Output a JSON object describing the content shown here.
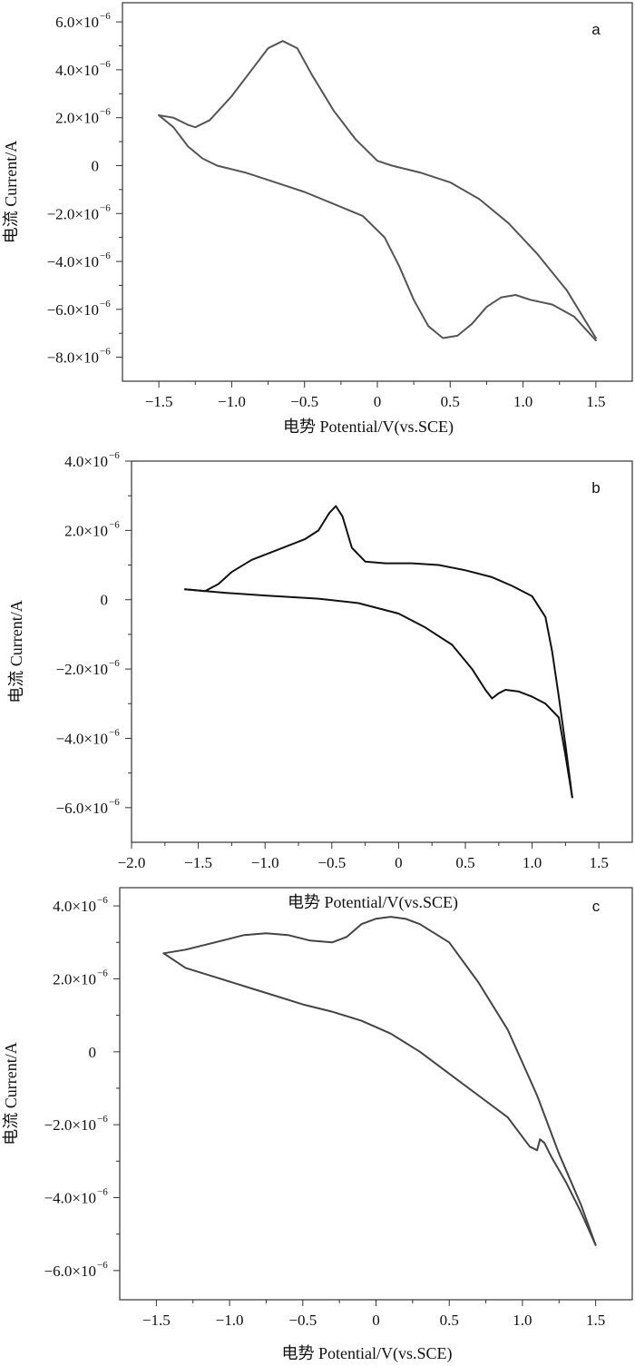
{
  "chart_data": [
    {
      "type": "line",
      "panel_label": "a",
      "xlabel": "电势 Potential/V(vs.SCE)",
      "ylabel": "电流 Current/A",
      "xlim": [
        -1.75,
        1.75
      ],
      "ylim": [
        -9e-06,
        6.8e-06
      ],
      "x_ticks": [
        -1.5,
        -1.0,
        -0.5,
        0,
        0.5,
        1.0,
        1.5
      ],
      "x_tick_labels": [
        "−1.5",
        "−1.0",
        "−0.5",
        "0",
        "0.5",
        "1.0",
        "1.5"
      ],
      "y_ticks": [
        6e-06,
        4e-06,
        2e-06,
        0,
        -2e-06,
        -4e-06,
        -6e-06,
        -8e-06
      ],
      "y_tick_labels": [
        "6.0×10",
        "4.0×10",
        "2.0×10",
        "0",
        "−2.0×10",
        "−4.0×10",
        "−6.0×10",
        "−8.0×10"
      ],
      "y_tick_exponent": "−6",
      "color": "#555555",
      "series": [
        {
          "x": [
            -1.5,
            -1.4,
            -1.3,
            -1.25,
            -1.15,
            -1.0,
            -0.85,
            -0.75,
            -0.65,
            -0.55,
            -0.45,
            -0.3,
            -0.15,
            0.0,
            0.1,
            0.3,
            0.5,
            0.7,
            0.9,
            1.1,
            1.3,
            1.5
          ],
          "y": [
            2.1e-06,
            2e-06,
            1.7e-06,
            1.6e-06,
            1.9e-06,
            2.9e-06,
            4.1e-06,
            4.9e-06,
            5.2e-06,
            4.9e-06,
            3.8e-06,
            2.3e-06,
            1.1e-06,
            2e-07,
            0.0,
            -3e-07,
            -7e-07,
            -1.4e-06,
            -2.4e-06,
            -3.7e-06,
            -5.2e-06,
            -7.2e-06
          ]
        },
        {
          "x": [
            1.5,
            1.35,
            1.2,
            1.05,
            0.95,
            0.85,
            0.75,
            0.65,
            0.55,
            0.45,
            0.35,
            0.25,
            0.15,
            0.05,
            -0.1,
            -0.3,
            -0.5,
            -0.7,
            -0.9,
            -1.1,
            -1.2,
            -1.3,
            -1.4,
            -1.5
          ],
          "y": [
            -7.3e-06,
            -6.3e-06,
            -5.8e-06,
            -5.6e-06,
            -5.4e-06,
            -5.5e-06,
            -5.9e-06,
            -6.6e-06,
            -7.1e-06,
            -7.2e-06,
            -6.7e-06,
            -5.6e-06,
            -4.2e-06,
            -3e-06,
            -2.1e-06,
            -1.6e-06,
            -1.1e-06,
            -7e-07,
            -3e-07,
            0.0,
            3e-07,
            8e-07,
            1.6e-06,
            2.1e-06
          ]
        }
      ]
    },
    {
      "type": "line",
      "panel_label": "b",
      "xlabel": "电势 Potential/V(vs.SCE)",
      "ylabel": "电流 Current/A",
      "xlim": [
        -2.0,
        1.75
      ],
      "ylim": [
        -7e-06,
        4e-06
      ],
      "x_ticks": [
        -2.0,
        -1.5,
        -1.0,
        -0.5,
        0,
        0.5,
        1.0,
        1.5
      ],
      "x_tick_labels": [
        "−2.0",
        "−1.5",
        "−1.0",
        "−0.5",
        "0",
        "0.5",
        "1.0",
        "1.5"
      ],
      "y_ticks": [
        4e-06,
        2e-06,
        0,
        -2e-06,
        -4e-06,
        -6e-06
      ],
      "y_tick_labels": [
        "4.0×10",
        "2.0×10",
        "0",
        "−2.0×10",
        "−4.0×10",
        "−6.0×10"
      ],
      "y_tick_exponent": "−6",
      "color": "#111111",
      "series": [
        {
          "x": [
            -1.6,
            -1.45,
            -1.35,
            -1.25,
            -1.1,
            -0.9,
            -0.7,
            -0.6,
            -0.52,
            -0.47,
            -0.42,
            -0.35,
            -0.25,
            -0.1,
            0.1,
            0.3,
            0.5,
            0.7,
            0.85,
            1.0,
            1.1,
            1.15,
            1.2,
            1.25,
            1.3
          ],
          "y": [
            3e-07,
            2.5e-07,
            4.5e-07,
            8e-07,
            1.15e-06,
            1.45e-06,
            1.75e-06,
            2e-06,
            2.5e-06,
            2.7e-06,
            2.4e-06,
            1.5e-06,
            1.1e-06,
            1.05e-06,
            1.05e-06,
            1e-06,
            8.5e-07,
            6.5e-07,
            4e-07,
            1e-07,
            -5e-07,
            -1.5e-06,
            -2.8e-06,
            -4.2e-06,
            -5.7e-06
          ]
        },
        {
          "x": [
            1.3,
            1.25,
            1.2,
            1.1,
            1.0,
            0.9,
            0.8,
            0.75,
            0.7,
            0.65,
            0.55,
            0.4,
            0.2,
            0.0,
            -0.3,
            -0.6,
            -1.0,
            -1.3,
            -1.6
          ],
          "y": [
            -5.7e-06,
            -4.5e-06,
            -3.4e-06,
            -3e-06,
            -2.8e-06,
            -2.65e-06,
            -2.6e-06,
            -2.7e-06,
            -2.85e-06,
            -2.6e-06,
            -2e-06,
            -1.3e-06,
            -8e-07,
            -4e-07,
            -1e-07,
            3e-08,
            1.2e-07,
            2e-07,
            3e-07
          ]
        }
      ]
    },
    {
      "type": "line",
      "panel_label": "c",
      "xlabel": "电势 Potential/V(vs.SCE)",
      "ylabel": "电流 Current/A",
      "xlim": [
        -1.75,
        1.75
      ],
      "ylim": [
        -6.8e-06,
        4.5e-06
      ],
      "x_ticks": [
        -1.5,
        -1.0,
        -0.5,
        0,
        0.5,
        1.0,
        1.5
      ],
      "x_tick_labels": [
        "−1.5",
        "−1.0",
        "−0.5",
        "0",
        "0.5",
        "1.0",
        "1.5"
      ],
      "y_ticks": [
        4e-06,
        2e-06,
        0,
        -2e-06,
        -4e-06,
        -6e-06
      ],
      "y_tick_labels": [
        "4.0×10",
        "2.0×10",
        "0",
        "−2.0×10",
        "−4.0×10",
        "−6.0×10"
      ],
      "y_tick_exponent": "−6",
      "color": "#444444",
      "series": [
        {
          "x": [
            -1.45,
            -1.3,
            -1.1,
            -0.9,
            -0.75,
            -0.6,
            -0.45,
            -0.3,
            -0.2,
            -0.1,
            0.0,
            0.1,
            0.2,
            0.3,
            0.5,
            0.7,
            0.9,
            1.1,
            1.25,
            1.4,
            1.5
          ],
          "y": [
            2.7e-06,
            2.8e-06,
            3e-06,
            3.2e-06,
            3.25e-06,
            3.2e-06,
            3.05e-06,
            3e-06,
            3.15e-06,
            3.5e-06,
            3.65e-06,
            3.7e-06,
            3.65e-06,
            3.5e-06,
            3e-06,
            1.9e-06,
            6e-07,
            -1.2e-06,
            -2.8e-06,
            -4.2e-06,
            -5.3e-06
          ]
        },
        {
          "x": [
            1.5,
            1.4,
            1.3,
            1.2,
            1.15,
            1.12,
            1.1,
            1.05,
            0.9,
            0.7,
            0.5,
            0.3,
            0.1,
            -0.1,
            -0.3,
            -0.5,
            -0.7,
            -0.9,
            -1.1,
            -1.3,
            -1.45
          ],
          "y": [
            -5.3e-06,
            -4.4e-06,
            -3.6e-06,
            -2.9e-06,
            -2.5e-06,
            -2.4e-06,
            -2.7e-06,
            -2.6e-06,
            -1.8e-06,
            -1.2e-06,
            -6e-07,
            0.0,
            5e-07,
            8.5e-07,
            1.1e-06,
            1.3e-06,
            1.55e-06,
            1.8e-06,
            2.05e-06,
            2.3e-06,
            2.7e-06
          ]
        }
      ]
    }
  ]
}
